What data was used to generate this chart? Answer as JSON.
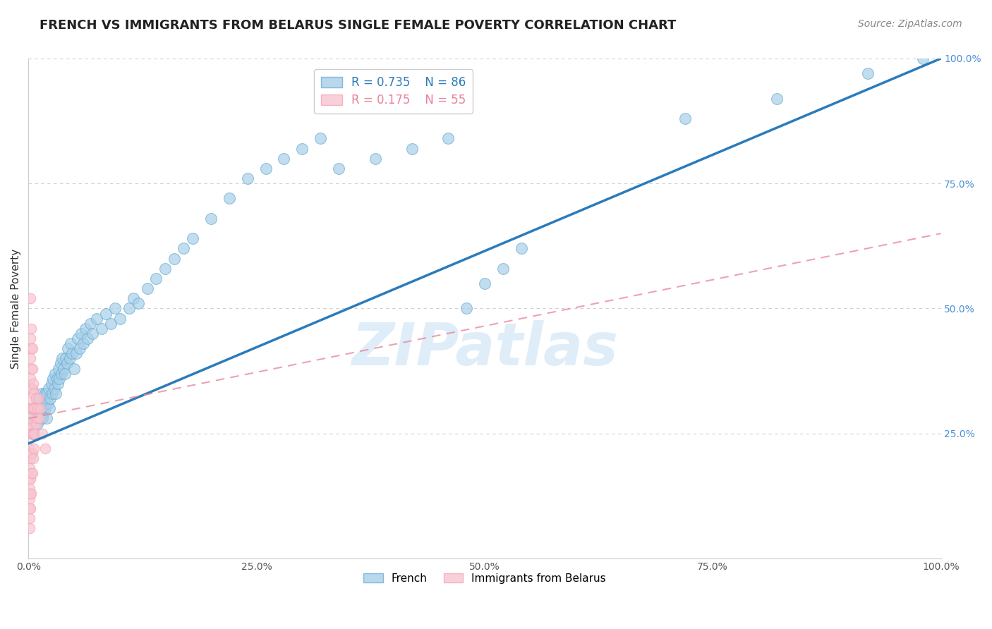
{
  "title": "FRENCH VS IMMIGRANTS FROM BELARUS SINGLE FEMALE POVERTY CORRELATION CHART",
  "source": "Source: ZipAtlas.com",
  "ylabel": "Single Female Poverty",
  "watermark": "ZIPatlas",
  "legend_french": "French",
  "legend_belarus": "Immigrants from Belarus",
  "R_french": 0.735,
  "N_french": 86,
  "R_belarus": 0.175,
  "N_belarus": 55,
  "xlim": [
    0.0,
    1.0
  ],
  "ylim": [
    0.0,
    1.0
  ],
  "xtick_labels": [
    "0.0%",
    "25.0%",
    "50.0%",
    "75.0%",
    "100.0%"
  ],
  "xtick_vals": [
    0.0,
    0.25,
    0.5,
    0.75,
    1.0
  ],
  "ytick_labels": [
    "25.0%",
    "50.0%",
    "75.0%",
    "100.0%"
  ],
  "ytick_vals": [
    0.25,
    0.5,
    0.75,
    1.0
  ],
  "french_color": "#a8cfe8",
  "french_edge_color": "#6aaed6",
  "belarus_color": "#f7c5d0",
  "belarus_edge_color": "#f4a6b8",
  "french_line_color": "#2b7bba",
  "belarus_line_color": "#e8829a",
  "french_x": [
    0.005,
    0.007,
    0.008,
    0.01,
    0.01,
    0.012,
    0.013,
    0.014,
    0.015,
    0.015,
    0.016,
    0.017,
    0.018,
    0.018,
    0.019,
    0.02,
    0.02,
    0.021,
    0.022,
    0.023,
    0.024,
    0.025,
    0.026,
    0.027,
    0.028,
    0.029,
    0.03,
    0.031,
    0.032,
    0.033,
    0.034,
    0.035,
    0.036,
    0.037,
    0.038,
    0.04,
    0.041,
    0.042,
    0.043,
    0.045,
    0.046,
    0.048,
    0.05,
    0.052,
    0.054,
    0.056,
    0.058,
    0.06,
    0.062,
    0.065,
    0.068,
    0.07,
    0.075,
    0.08,
    0.085,
    0.09,
    0.095,
    0.1,
    0.11,
    0.115,
    0.12,
    0.13,
    0.14,
    0.15,
    0.16,
    0.17,
    0.18,
    0.2,
    0.22,
    0.24,
    0.26,
    0.28,
    0.3,
    0.32,
    0.34,
    0.38,
    0.42,
    0.46,
    0.48,
    0.5,
    0.52,
    0.54,
    0.72,
    0.82,
    0.92,
    0.98
  ],
  "french_y": [
    0.25,
    0.28,
    0.3,
    0.27,
    0.32,
    0.28,
    0.3,
    0.33,
    0.28,
    0.31,
    0.29,
    0.32,
    0.3,
    0.33,
    0.31,
    0.28,
    0.33,
    0.31,
    0.34,
    0.3,
    0.32,
    0.35,
    0.33,
    0.36,
    0.34,
    0.37,
    0.33,
    0.36,
    0.35,
    0.38,
    0.36,
    0.39,
    0.37,
    0.4,
    0.38,
    0.37,
    0.4,
    0.39,
    0.42,
    0.4,
    0.43,
    0.41,
    0.38,
    0.41,
    0.44,
    0.42,
    0.45,
    0.43,
    0.46,
    0.44,
    0.47,
    0.45,
    0.48,
    0.46,
    0.49,
    0.47,
    0.5,
    0.48,
    0.5,
    0.52,
    0.51,
    0.54,
    0.56,
    0.58,
    0.6,
    0.62,
    0.64,
    0.68,
    0.72,
    0.76,
    0.78,
    0.8,
    0.82,
    0.84,
    0.78,
    0.8,
    0.82,
    0.84,
    0.5,
    0.55,
    0.58,
    0.62,
    0.88,
    0.92,
    0.97,
    1.0
  ],
  "belarus_x": [
    0.001,
    0.001,
    0.001,
    0.001,
    0.001,
    0.001,
    0.001,
    0.001,
    0.001,
    0.001,
    0.002,
    0.002,
    0.002,
    0.002,
    0.002,
    0.002,
    0.002,
    0.002,
    0.002,
    0.002,
    0.002,
    0.003,
    0.003,
    0.003,
    0.003,
    0.003,
    0.003,
    0.003,
    0.003,
    0.003,
    0.004,
    0.004,
    0.004,
    0.004,
    0.004,
    0.004,
    0.004,
    0.005,
    0.005,
    0.005,
    0.005,
    0.006,
    0.006,
    0.006,
    0.007,
    0.007,
    0.008,
    0.008,
    0.009,
    0.01,
    0.011,
    0.012,
    0.013,
    0.015,
    0.018
  ],
  "belarus_y": [
    0.06,
    0.08,
    0.1,
    0.12,
    0.14,
    0.16,
    0.18,
    0.22,
    0.26,
    0.3,
    0.1,
    0.13,
    0.16,
    0.2,
    0.25,
    0.28,
    0.32,
    0.36,
    0.4,
    0.44,
    0.52,
    0.13,
    0.17,
    0.21,
    0.25,
    0.3,
    0.34,
    0.38,
    0.42,
    0.46,
    0.17,
    0.21,
    0.25,
    0.3,
    0.34,
    0.38,
    0.42,
    0.2,
    0.25,
    0.3,
    0.35,
    0.22,
    0.27,
    0.33,
    0.25,
    0.3,
    0.27,
    0.32,
    0.28,
    0.3,
    0.32,
    0.28,
    0.3,
    0.25,
    0.22
  ],
  "title_fontsize": 13,
  "axis_label_fontsize": 11,
  "tick_fontsize": 10,
  "legend_fontsize": 12,
  "watermark_fontsize": 60,
  "source_fontsize": 10,
  "background_color": "#ffffff",
  "grid_color": "#d0d0d0"
}
